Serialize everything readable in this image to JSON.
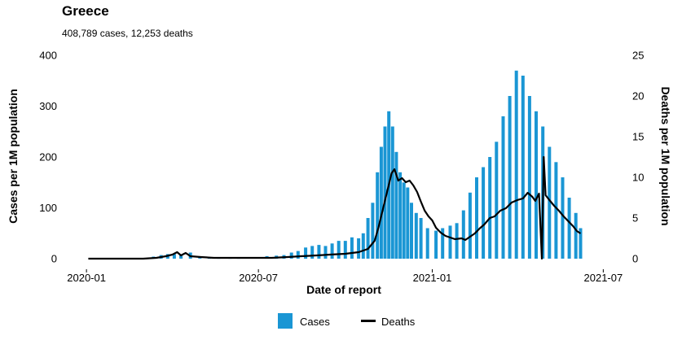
{
  "title": "Greece",
  "subtitle": "408,789 cases, 12,253 deaths",
  "colors": {
    "cases": "#1a96d4",
    "deaths": "#000000"
  },
  "chart_data": {
    "type": "bar",
    "xlabel": "Date of report",
    "ylabel_left": "Cases per 1M population",
    "ylabel_right": "Deaths per 1M population",
    "x_range": [
      "2019-12-25",
      "2021-07-05"
    ],
    "x_ticks": [
      "2020-01",
      "2020-07",
      "2021-01",
      "2021-07"
    ],
    "y_left_ticks": [
      "0",
      "100",
      "200",
      "300",
      "400"
    ],
    "y_left_range": [
      0,
      400
    ],
    "y_right_ticks": [
      "0",
      "5",
      "10",
      "15",
      "20",
      "25"
    ],
    "y_right_range": [
      0,
      25
    ],
    "grid": false,
    "legend_position": "bottom",
    "series": [
      {
        "name": "Cases",
        "type": "bar",
        "axis": "left",
        "points": [
          [
            "2020-01-03",
            0
          ],
          [
            "2020-02-01",
            0
          ],
          [
            "2020-02-26",
            0
          ],
          [
            "2020-03-05",
            1
          ],
          [
            "2020-03-12",
            4
          ],
          [
            "2020-03-20",
            7
          ],
          [
            "2020-03-27",
            9
          ],
          [
            "2020-04-03",
            9
          ],
          [
            "2020-04-10",
            7
          ],
          [
            "2020-04-20",
            12
          ],
          [
            "2020-04-30",
            4
          ],
          [
            "2020-05-10",
            2
          ],
          [
            "2020-05-20",
            2
          ],
          [
            "2020-06-01",
            2
          ],
          [
            "2020-06-10",
            2
          ],
          [
            "2020-06-20",
            3
          ],
          [
            "2020-07-01",
            3
          ],
          [
            "2020-07-10",
            5
          ],
          [
            "2020-07-20",
            6
          ],
          [
            "2020-07-28",
            7
          ],
          [
            "2020-08-05",
            12
          ],
          [
            "2020-08-12",
            15
          ],
          [
            "2020-08-20",
            22
          ],
          [
            "2020-08-27",
            25
          ],
          [
            "2020-09-03",
            27
          ],
          [
            "2020-09-10",
            25
          ],
          [
            "2020-09-17",
            30
          ],
          [
            "2020-09-24",
            35
          ],
          [
            "2020-10-01",
            35
          ],
          [
            "2020-10-08",
            42
          ],
          [
            "2020-10-15",
            40
          ],
          [
            "2020-10-20",
            50
          ],
          [
            "2020-10-25",
            80
          ],
          [
            "2020-10-30",
            110
          ],
          [
            "2020-11-04",
            170
          ],
          [
            "2020-11-08",
            220
          ],
          [
            "2020-11-12",
            260
          ],
          [
            "2020-11-16",
            290
          ],
          [
            "2020-11-20",
            260
          ],
          [
            "2020-11-24",
            210
          ],
          [
            "2020-11-28",
            170
          ],
          [
            "2020-12-02",
            150
          ],
          [
            "2020-12-06",
            140
          ],
          [
            "2020-12-10",
            110
          ],
          [
            "2020-12-15",
            90
          ],
          [
            "2020-12-20",
            80
          ],
          [
            "2020-12-27",
            60
          ],
          [
            "2021-01-05",
            55
          ],
          [
            "2021-01-12",
            60
          ],
          [
            "2021-01-20",
            65
          ],
          [
            "2021-01-27",
            70
          ],
          [
            "2021-02-03",
            95
          ],
          [
            "2021-02-10",
            130
          ],
          [
            "2021-02-17",
            160
          ],
          [
            "2021-02-24",
            180
          ],
          [
            "2021-03-03",
            200
          ],
          [
            "2021-03-10",
            230
          ],
          [
            "2021-03-17",
            280
          ],
          [
            "2021-03-24",
            320
          ],
          [
            "2021-03-31",
            370
          ],
          [
            "2021-04-07",
            360
          ],
          [
            "2021-04-14",
            320
          ],
          [
            "2021-04-21",
            290
          ],
          [
            "2021-04-28",
            260
          ],
          [
            "2021-05-05",
            220
          ],
          [
            "2021-05-12",
            190
          ],
          [
            "2021-05-19",
            160
          ],
          [
            "2021-05-26",
            120
          ],
          [
            "2021-06-02",
            90
          ],
          [
            "2021-06-07",
            60
          ]
        ]
      },
      {
        "name": "Deaths",
        "type": "line",
        "axis": "right",
        "points": [
          [
            "2020-01-03",
            0
          ],
          [
            "2020-03-01",
            0
          ],
          [
            "2020-03-15",
            0.1
          ],
          [
            "2020-03-25",
            0.3
          ],
          [
            "2020-04-01",
            0.5
          ],
          [
            "2020-04-06",
            0.8
          ],
          [
            "2020-04-10",
            0.4
          ],
          [
            "2020-04-15",
            0.7
          ],
          [
            "2020-04-20",
            0.3
          ],
          [
            "2020-05-01",
            0.2
          ],
          [
            "2020-05-15",
            0.1
          ],
          [
            "2020-06-01",
            0.1
          ],
          [
            "2020-06-20",
            0.1
          ],
          [
            "2020-07-15",
            0.1
          ],
          [
            "2020-08-01",
            0.2
          ],
          [
            "2020-08-15",
            0.3
          ],
          [
            "2020-09-01",
            0.4
          ],
          [
            "2020-09-15",
            0.5
          ],
          [
            "2020-10-01",
            0.6
          ],
          [
            "2020-10-15",
            0.8
          ],
          [
            "2020-10-25",
            1.2
          ],
          [
            "2020-11-01",
            2.2
          ],
          [
            "2020-11-05",
            3.8
          ],
          [
            "2020-11-10",
            6.2
          ],
          [
            "2020-11-15",
            8.6
          ],
          [
            "2020-11-19",
            10.5
          ],
          [
            "2020-11-22",
            11
          ],
          [
            "2020-11-26",
            9.6
          ],
          [
            "2020-11-30",
            9.9
          ],
          [
            "2020-12-04",
            9.4
          ],
          [
            "2020-12-08",
            9.6
          ],
          [
            "2020-12-12",
            9
          ],
          [
            "2020-12-16",
            8.2
          ],
          [
            "2020-12-20",
            7
          ],
          [
            "2020-12-24",
            5.9
          ],
          [
            "2020-12-28",
            5.2
          ],
          [
            "2021-01-01",
            4.7
          ],
          [
            "2021-01-05",
            3.8
          ],
          [
            "2021-01-10",
            3.2
          ],
          [
            "2021-01-15",
            2.8
          ],
          [
            "2021-01-20",
            2.6
          ],
          [
            "2021-01-25",
            2.4
          ],
          [
            "2021-02-01",
            2.5
          ],
          [
            "2021-02-05",
            2.3
          ],
          [
            "2021-02-10",
            2.7
          ],
          [
            "2021-02-15",
            3.1
          ],
          [
            "2021-02-20",
            3.7
          ],
          [
            "2021-02-25",
            4.2
          ],
          [
            "2021-03-03",
            5
          ],
          [
            "2021-03-08",
            5.2
          ],
          [
            "2021-03-14",
            5.9
          ],
          [
            "2021-03-20",
            6.2
          ],
          [
            "2021-03-26",
            6.9
          ],
          [
            "2021-04-01",
            7.2
          ],
          [
            "2021-04-07",
            7.4
          ],
          [
            "2021-04-12",
            8.1
          ],
          [
            "2021-04-17",
            7.6
          ],
          [
            "2021-04-20",
            7.1
          ],
          [
            "2021-04-24",
            8
          ],
          [
            "2021-04-27",
            0
          ],
          [
            "2021-04-29",
            12.5
          ],
          [
            "2021-05-01",
            7.8
          ],
          [
            "2021-05-05",
            7.2
          ],
          [
            "2021-05-10",
            6.5
          ],
          [
            "2021-05-15",
            5.9
          ],
          [
            "2021-05-20",
            5.2
          ],
          [
            "2021-05-25",
            4.6
          ],
          [
            "2021-05-30",
            4
          ],
          [
            "2021-06-03",
            3.4
          ],
          [
            "2021-06-07",
            3.1
          ]
        ]
      }
    ]
  }
}
